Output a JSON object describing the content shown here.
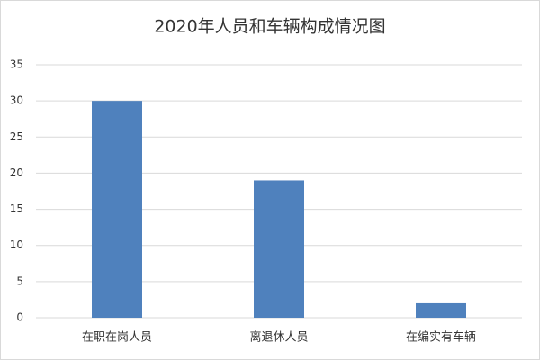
{
  "chart_data": {
    "type": "bar",
    "title": "2020年人员和车辆构成情况图",
    "categories": [
      "在职在岗人员",
      "离退休人员",
      "在编实有车辆"
    ],
    "values": [
      30,
      19,
      2
    ],
    "color": "#4f81bd",
    "ylim": [
      0,
      35
    ],
    "yticks": [
      0,
      5,
      10,
      15,
      20,
      25,
      30,
      35
    ],
    "grid": true
  }
}
